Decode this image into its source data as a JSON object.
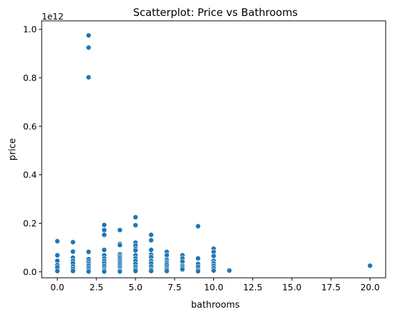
{
  "chart_data": {
    "type": "scatter",
    "title": "Scatterplot: Price vs Bathrooms",
    "xlabel": "bathrooms",
    "ylabel": "price",
    "y_offset_text": "1e12",
    "xlim": [
      -1.0,
      21.0
    ],
    "ylim": [
      -0.025,
      1.035
    ],
    "x_ticks": [
      0.0,
      2.5,
      5.0,
      7.5,
      10.0,
      12.5,
      15.0,
      17.5,
      20.0
    ],
    "x_tick_labels": [
      "0.0",
      "2.5",
      "5.0",
      "7.5",
      "10.0",
      "12.5",
      "15.0",
      "17.5",
      "20.0"
    ],
    "y_ticks": [
      0.0,
      0.2,
      0.4,
      0.6,
      0.8,
      1.0
    ],
    "y_tick_labels": [
      "0.0",
      "0.2",
      "0.4",
      "0.6",
      "0.8",
      "1.0"
    ],
    "grid": false,
    "legend": "none",
    "point_color": "#1f77b4",
    "y_units_note": "y values in units of 1e12",
    "points": [
      {
        "x": 0,
        "y": 0.126
      },
      {
        "x": 0,
        "y": 0.068
      },
      {
        "x": 0,
        "y": 0.045
      },
      {
        "x": 0,
        "y": 0.028
      },
      {
        "x": 0,
        "y": 0.018
      },
      {
        "x": 0,
        "y": 0.003
      },
      {
        "x": 1,
        "y": 0.122
      },
      {
        "x": 1,
        "y": 0.083
      },
      {
        "x": 1,
        "y": 0.058
      },
      {
        "x": 1,
        "y": 0.045
      },
      {
        "x": 1,
        "y": 0.035
      },
      {
        "x": 1,
        "y": 0.022
      },
      {
        "x": 1,
        "y": 0.012
      },
      {
        "x": 1,
        "y": 0.003
      },
      {
        "x": 2,
        "y": 0.975
      },
      {
        "x": 2,
        "y": 0.925
      },
      {
        "x": 2,
        "y": 0.802
      },
      {
        "x": 2,
        "y": 0.082
      },
      {
        "x": 2,
        "y": 0.052
      },
      {
        "x": 2,
        "y": 0.042
      },
      {
        "x": 2,
        "y": 0.033
      },
      {
        "x": 2,
        "y": 0.025
      },
      {
        "x": 2,
        "y": 0.016
      },
      {
        "x": 2,
        "y": 0.008
      },
      {
        "x": 2,
        "y": 0.001
      },
      {
        "x": 3,
        "y": 0.193
      },
      {
        "x": 3,
        "y": 0.172
      },
      {
        "x": 3,
        "y": 0.152
      },
      {
        "x": 3,
        "y": 0.09
      },
      {
        "x": 3,
        "y": 0.068
      },
      {
        "x": 3,
        "y": 0.055
      },
      {
        "x": 3,
        "y": 0.045
      },
      {
        "x": 3,
        "y": 0.035
      },
      {
        "x": 3,
        "y": 0.024
      },
      {
        "x": 3,
        "y": 0.014
      },
      {
        "x": 3,
        "y": 0.006
      },
      {
        "x": 3,
        "y": 0.001
      },
      {
        "x": 4,
        "y": 0.172
      },
      {
        "x": 4,
        "y": 0.115
      },
      {
        "x": 4,
        "y": 0.11
      },
      {
        "x": 4,
        "y": 0.072
      },
      {
        "x": 4,
        "y": 0.065
      },
      {
        "x": 4,
        "y": 0.058
      },
      {
        "x": 4,
        "y": 0.05
      },
      {
        "x": 4,
        "y": 0.042
      },
      {
        "x": 4,
        "y": 0.035
      },
      {
        "x": 4,
        "y": 0.028
      },
      {
        "x": 4,
        "y": 0.02
      },
      {
        "x": 4,
        "y": 0.012
      },
      {
        "x": 4,
        "y": 0.005
      },
      {
        "x": 4,
        "y": 0.001
      },
      {
        "x": 5,
        "y": 0.225
      },
      {
        "x": 5,
        "y": 0.192
      },
      {
        "x": 5,
        "y": 0.12
      },
      {
        "x": 5,
        "y": 0.108
      },
      {
        "x": 5,
        "y": 0.095
      },
      {
        "x": 5,
        "y": 0.088
      },
      {
        "x": 5,
        "y": 0.068
      },
      {
        "x": 5,
        "y": 0.055
      },
      {
        "x": 5,
        "y": 0.045
      },
      {
        "x": 5,
        "y": 0.032
      },
      {
        "x": 5,
        "y": 0.02
      },
      {
        "x": 5,
        "y": 0.01
      },
      {
        "x": 5,
        "y": 0.003
      },
      {
        "x": 6,
        "y": 0.152
      },
      {
        "x": 6,
        "y": 0.13
      },
      {
        "x": 6,
        "y": 0.09
      },
      {
        "x": 6,
        "y": 0.07
      },
      {
        "x": 6,
        "y": 0.06
      },
      {
        "x": 6,
        "y": 0.045
      },
      {
        "x": 6,
        "y": 0.035
      },
      {
        "x": 6,
        "y": 0.022
      },
      {
        "x": 6,
        "y": 0.01
      },
      {
        "x": 6,
        "y": 0.003
      },
      {
        "x": 7,
        "y": 0.082
      },
      {
        "x": 7,
        "y": 0.068
      },
      {
        "x": 7,
        "y": 0.05
      },
      {
        "x": 7,
        "y": 0.042
      },
      {
        "x": 7,
        "y": 0.035
      },
      {
        "x": 7,
        "y": 0.028
      },
      {
        "x": 7,
        "y": 0.018
      },
      {
        "x": 7,
        "y": 0.01
      },
      {
        "x": 7,
        "y": 0.003
      },
      {
        "x": 8,
        "y": 0.068
      },
      {
        "x": 8,
        "y": 0.055
      },
      {
        "x": 8,
        "y": 0.042
      },
      {
        "x": 8,
        "y": 0.025
      },
      {
        "x": 8,
        "y": 0.018
      },
      {
        "x": 8,
        "y": 0.01
      },
      {
        "x": 9,
        "y": 0.188
      },
      {
        "x": 9,
        "y": 0.055
      },
      {
        "x": 9,
        "y": 0.032
      },
      {
        "x": 9,
        "y": 0.02
      },
      {
        "x": 9,
        "y": 0.008
      },
      {
        "x": 9,
        "y": 0.002
      },
      {
        "x": 10,
        "y": 0.095
      },
      {
        "x": 10,
        "y": 0.082
      },
      {
        "x": 10,
        "y": 0.065
      },
      {
        "x": 10,
        "y": 0.045
      },
      {
        "x": 10,
        "y": 0.035
      },
      {
        "x": 10,
        "y": 0.025
      },
      {
        "x": 10,
        "y": 0.015
      },
      {
        "x": 10,
        "y": 0.005
      },
      {
        "x": 11,
        "y": 0.005
      },
      {
        "x": 20,
        "y": 0.025
      }
    ]
  }
}
